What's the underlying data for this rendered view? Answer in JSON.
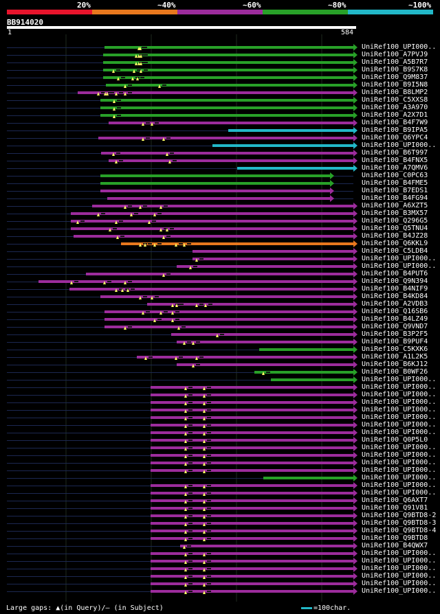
{
  "legend": {
    "labels": [
      "20%",
      "~40%",
      "~60%",
      "~80%",
      "~100%"
    ],
    "colors": [
      "#e8142c",
      "#e8781e",
      "#9c2c9c",
      "#28a028",
      "#22b8c8"
    ]
  },
  "query": {
    "name": "BB914020",
    "start": "1",
    "end": "584",
    "length": 584
  },
  "hits": [
    {
      "name": "UniRef100_UPI000..",
      "start": 165,
      "end": 584,
      "color": "green",
      "gaps": [
        223,
        225
      ]
    },
    {
      "name": "UniRef100_A7PVJ9",
      "start": 163,
      "end": 584,
      "color": "green",
      "gaps": [
        218,
        223,
        226
      ]
    },
    {
      "name": "UniRef100_A5B7R7",
      "start": 163,
      "end": 584,
      "color": "green",
      "gaps": [
        218,
        223,
        226
      ]
    },
    {
      "name": "UniRef100_B9S7K8",
      "start": 163,
      "end": 584,
      "color": "green",
      "gaps": [
        180,
        215,
        226
      ]
    },
    {
      "name": "UniRef100_Q9M837",
      "start": 163,
      "end": 584,
      "color": "green",
      "gaps": [
        188,
        213,
        221
      ]
    },
    {
      "name": "UniRef100_B9I5N8",
      "start": 167,
      "end": 584,
      "color": "green",
      "gaps": [
        200,
        258
      ]
    },
    {
      "name": "UniRef100_B8LMP2",
      "start": 120,
      "end": 584,
      "color": "purple",
      "gaps": [
        155,
        166,
        170,
        185,
        200
      ]
    },
    {
      "name": "UniRef100_C5XXS8",
      "start": 158,
      "end": 584,
      "color": "green",
      "gaps": [
        182
      ]
    },
    {
      "name": "UniRef100_A3A970",
      "start": 158,
      "end": 584,
      "color": "green",
      "gaps": [
        182
      ]
    },
    {
      "name": "UniRef100_A2X7D1",
      "start": 158,
      "end": 584,
      "color": "green",
      "gaps": [
        182
      ]
    },
    {
      "name": "UniRef100_B4F7W9",
      "start": 172,
      "end": 584,
      "color": "purple",
      "gaps": [
        230,
        245
      ]
    },
    {
      "name": "UniRef100_B9IPA5",
      "start": 373,
      "end": 584,
      "color": "cyan",
      "gaps": []
    },
    {
      "name": "UniRef100_Q6YPC4",
      "start": 155,
      "end": 584,
      "color": "purple",
      "gaps": [
        230,
        265
      ]
    },
    {
      "name": "UniRef100_UPI000..",
      "start": 347,
      "end": 584,
      "color": "cyan",
      "gaps": []
    },
    {
      "name": "UniRef100_B6T997",
      "start": 160,
      "end": 584,
      "color": "purple",
      "gaps": [
        180,
        270
      ]
    },
    {
      "name": "UniRef100_B4FNX5",
      "start": 172,
      "end": 584,
      "color": "purple",
      "gaps": [
        185,
        275
      ]
    },
    {
      "name": "UniRef100_A7QMV6",
      "start": 388,
      "end": 584,
      "color": "cyan",
      "gaps": []
    },
    {
      "name": "UniRef100_C0PC63",
      "start": 158,
      "end": 545,
      "color": "green",
      "gaps": []
    },
    {
      "name": "UniRef100_B4FME5",
      "start": 158,
      "end": 545,
      "color": "green",
      "gaps": []
    },
    {
      "name": "UniRef100_B7EDS1",
      "start": 158,
      "end": 545,
      "color": "purple",
      "gaps": []
    },
    {
      "name": "UniRef100_B4FG94",
      "start": 170,
      "end": 545,
      "color": "purple",
      "gaps": []
    },
    {
      "name": "UniRef100_A6XZT5",
      "start": 144,
      "end": 584,
      "color": "purple",
      "gaps": [
        200,
        225,
        260
      ]
    },
    {
      "name": "UniRef100_B3MX57",
      "start": 109,
      "end": 584,
      "color": "purple",
      "gaps": [
        155,
        210,
        250
      ]
    },
    {
      "name": "UniRef100_Q296G5",
      "start": 109,
      "end": 584,
      "color": "purple",
      "gaps": [
        120,
        185,
        240
      ]
    },
    {
      "name": "UniRef100_Q5TNU4",
      "start": 109,
      "end": 584,
      "color": "purple",
      "gaps": [
        175,
        260,
        270
      ]
    },
    {
      "name": "UniRef100_B4JZ28",
      "start": 113,
      "end": 584,
      "color": "purple",
      "gaps": [
        187,
        265
      ]
    },
    {
      "name": "UniRef100_Q6KKL9",
      "start": 193,
      "end": 584,
      "color": "orange",
      "gaps": [
        225,
        233,
        250,
        285,
        300
      ]
    },
    {
      "name": "UniRef100_C5LDB4",
      "start": 313,
      "end": 584,
      "color": "purple",
      "gaps": []
    },
    {
      "name": "UniRef100_UPI000..",
      "start": 313,
      "end": 584,
      "color": "purple",
      "gaps": [
        320
      ]
    },
    {
      "name": "UniRef100_UPI000..",
      "start": 287,
      "end": 584,
      "color": "purple",
      "gaps": [
        310
      ]
    },
    {
      "name": "UniRef100_B4PUT6",
      "start": 134,
      "end": 584,
      "color": "purple",
      "gaps": [
        265
      ]
    },
    {
      "name": "UniRef100_Q9N394",
      "start": 54,
      "end": 584,
      "color": "purple",
      "gaps": [
        110,
        165,
        200
      ]
    },
    {
      "name": "UniRef100_B4NIF9",
      "start": 106,
      "end": 584,
      "color": "purple",
      "gaps": [
        185,
        195,
        205
      ]
    },
    {
      "name": "UniRef100_B4KD84",
      "start": 158,
      "end": 584,
      "color": "purple",
      "gaps": [
        225,
        245
      ]
    },
    {
      "name": "UniRef100_A2VDB3",
      "start": 237,
      "end": 584,
      "color": "purple",
      "gaps": [
        280,
        287,
        320,
        335
      ]
    },
    {
      "name": "UniRef100_Q16SB6",
      "start": 165,
      "end": 584,
      "color": "purple",
      "gaps": [
        230,
        260,
        280
      ]
    },
    {
      "name": "UniRef100_B4LZ49",
      "start": 165,
      "end": 584,
      "color": "purple",
      "gaps": [
        250,
        280
      ]
    },
    {
      "name": "UniRef100_Q9VND7",
      "start": 165,
      "end": 584,
      "color": "purple",
      "gaps": [
        200,
        290
      ]
    },
    {
      "name": "UniRef100_B3P2F5",
      "start": 278,
      "end": 584,
      "color": "purple",
      "gaps": [
        355
      ]
    },
    {
      "name": "UniRef100_B9PUF4",
      "start": 287,
      "end": 584,
      "color": "purple",
      "gaps": [
        300,
        315
      ]
    },
    {
      "name": "UniRef100_C5KXK6",
      "start": 426,
      "end": 584,
      "color": "green",
      "gaps": []
    },
    {
      "name": "UniRef100_A1L2K5",
      "start": 220,
      "end": 584,
      "color": "purple",
      "gaps": [
        235,
        285,
        320
      ]
    },
    {
      "name": "UniRef100_B6KJ12",
      "start": 287,
      "end": 584,
      "color": "purple",
      "gaps": [
        315
      ]
    },
    {
      "name": "UniRef100_B0WF26",
      "start": 418,
      "end": 584,
      "color": "green",
      "gaps": [
        433
      ]
    },
    {
      "name": "UniRef100_UPI000..",
      "start": 445,
      "end": 584,
      "color": "green",
      "gaps": []
    },
    {
      "name": "UniRef100_UPI000..",
      "start": 243,
      "end": 584,
      "color": "purple",
      "gaps": [
        302,
        333
      ]
    },
    {
      "name": "UniRef100_UPI000..",
      "start": 243,
      "end": 584,
      "color": "purple",
      "gaps": [
        302,
        333
      ]
    },
    {
      "name": "UniRef100_UPI000..",
      "start": 243,
      "end": 584,
      "color": "purple",
      "gaps": [
        302,
        333
      ]
    },
    {
      "name": "UniRef100_UPI000..",
      "start": 243,
      "end": 584,
      "color": "purple",
      "gaps": [
        302,
        333
      ]
    },
    {
      "name": "UniRef100_UPI000..",
      "start": 243,
      "end": 584,
      "color": "purple",
      "gaps": [
        302,
        333
      ]
    },
    {
      "name": "UniRef100_UPI000..",
      "start": 243,
      "end": 584,
      "color": "purple",
      "gaps": [
        302,
        333
      ]
    },
    {
      "name": "UniRef100_UPI000..",
      "start": 243,
      "end": 584,
      "color": "purple",
      "gaps": [
        302,
        333
      ]
    },
    {
      "name": "UniRef100_Q0P5L0",
      "start": 243,
      "end": 584,
      "color": "purple",
      "gaps": [
        302,
        333
      ]
    },
    {
      "name": "UniRef100_UPI000..",
      "start": 243,
      "end": 584,
      "color": "purple",
      "gaps": [
        302,
        333
      ]
    },
    {
      "name": "UniRef100_UPI000..",
      "start": 243,
      "end": 584,
      "color": "purple",
      "gaps": [
        302,
        333
      ]
    },
    {
      "name": "UniRef100_UPI000..",
      "start": 243,
      "end": 584,
      "color": "purple",
      "gaps": [
        302,
        333
      ]
    },
    {
      "name": "UniRef100_UPI000..",
      "start": 243,
      "end": 584,
      "color": "purple",
      "gaps": [
        302,
        333
      ]
    },
    {
      "name": "UniRef100_UPI000..",
      "start": 433,
      "end": 584,
      "color": "green",
      "gaps": []
    },
    {
      "name": "UniRef100_UPI000..",
      "start": 243,
      "end": 584,
      "color": "purple",
      "gaps": [
        302,
        333
      ]
    },
    {
      "name": "UniRef100_UPI000..",
      "start": 243,
      "end": 584,
      "color": "purple",
      "gaps": [
        302,
        333
      ]
    },
    {
      "name": "UniRef100_Q6AXT7",
      "start": 243,
      "end": 584,
      "color": "purple",
      "gaps": [
        302,
        333
      ]
    },
    {
      "name": "UniRef100_Q91V81",
      "start": 243,
      "end": 584,
      "color": "purple",
      "gaps": [
        302,
        333
      ]
    },
    {
      "name": "UniRef100_Q9BTD8-2",
      "start": 243,
      "end": 584,
      "color": "purple",
      "gaps": [
        302,
        333
      ]
    },
    {
      "name": "UniRef100_Q9BTD8-3",
      "start": 243,
      "end": 584,
      "color": "purple",
      "gaps": [
        302,
        333
      ]
    },
    {
      "name": "UniRef100_Q9BTD8-4",
      "start": 243,
      "end": 584,
      "color": "purple",
      "gaps": [
        302,
        333
      ]
    },
    {
      "name": "UniRef100_Q9BTD8",
      "start": 243,
      "end": 584,
      "color": "purple",
      "gaps": [
        302,
        333
      ]
    },
    {
      "name": "UniRef100_B4QWX7",
      "start": 292,
      "end": 584,
      "color": "purple",
      "gaps": [
        300
      ]
    },
    {
      "name": "UniRef100_UPI000..",
      "start": 243,
      "end": 584,
      "color": "purple",
      "gaps": [
        302,
        333
      ]
    },
    {
      "name": "UniRef100_UPI000..",
      "start": 243,
      "end": 584,
      "color": "purple",
      "gaps": [
        302,
        333
      ]
    },
    {
      "name": "UniRef100_UPI000..",
      "start": 243,
      "end": 584,
      "color": "purple",
      "gaps": [
        302,
        333
      ]
    },
    {
      "name": "UniRef100_UPI000..",
      "start": 243,
      "end": 584,
      "color": "purple",
      "gaps": [
        302,
        333
      ]
    },
    {
      "name": "UniRef100_UPI000..",
      "start": 243,
      "end": 584,
      "color": "purple",
      "gaps": [
        302,
        333
      ]
    },
    {
      "name": "UniRef100_UPI000..",
      "start": 243,
      "end": 584,
      "color": "purple",
      "gaps": [
        302,
        333
      ]
    }
  ],
  "footer": {
    "note": "Large gaps: ▲(in Query)/— (in Subject)",
    "scale": "=100char."
  },
  "palette": {
    "red": "#e8142c",
    "orange": "#e8781e",
    "purple": "#9c2c9c",
    "green": "#28a028",
    "cyan": "#22b8c8",
    "tail": "#1c2852",
    "gap_query": "#ffff66",
    "grid": "#1e2a1e"
  }
}
